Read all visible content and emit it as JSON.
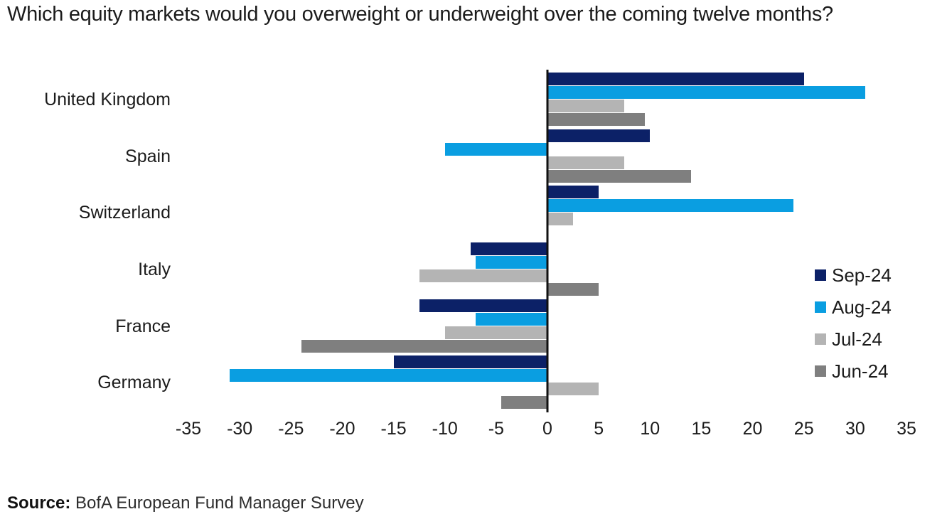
{
  "title": "Which equity markets would you overweight or underweight over the coming twelve months?",
  "source": {
    "label": "Source:",
    "text": " BofA European Fund Manager Survey"
  },
  "chart_data": {
    "type": "bar",
    "orientation": "horizontal",
    "title": "Which equity markets would you overweight or underweight over the coming twelve months?",
    "categories": [
      "United Kingdom",
      "Spain",
      "Switzerland",
      "Italy",
      "France",
      "Germany"
    ],
    "series": [
      {
        "name": "Sep-24",
        "color": "#0c2167",
        "values": [
          25,
          10,
          5,
          -7.5,
          -12.5,
          -15
        ]
      },
      {
        "name": "Aug-24",
        "color": "#0a9ee1",
        "values": [
          31,
          -10,
          24,
          -7,
          -7,
          -31
        ]
      },
      {
        "name": "Jul-24",
        "color": "#b4b4b4",
        "values": [
          7.5,
          7.5,
          2.5,
          -12.5,
          -10,
          5
        ]
      },
      {
        "name": "Jun-24",
        "color": "#7f7f7f",
        "values": [
          9.5,
          14,
          0,
          5,
          -24,
          -4.5
        ]
      }
    ],
    "xlim": [
      -35,
      35
    ],
    "xticks": [
      -35,
      -30,
      -25,
      -20,
      -15,
      -10,
      -5,
      0,
      5,
      10,
      15,
      20,
      25,
      30,
      35
    ],
    "grid": false,
    "legend_position": "middle-right",
    "axis_line_color": "#111111",
    "text_color": "#1b1b1b"
  }
}
